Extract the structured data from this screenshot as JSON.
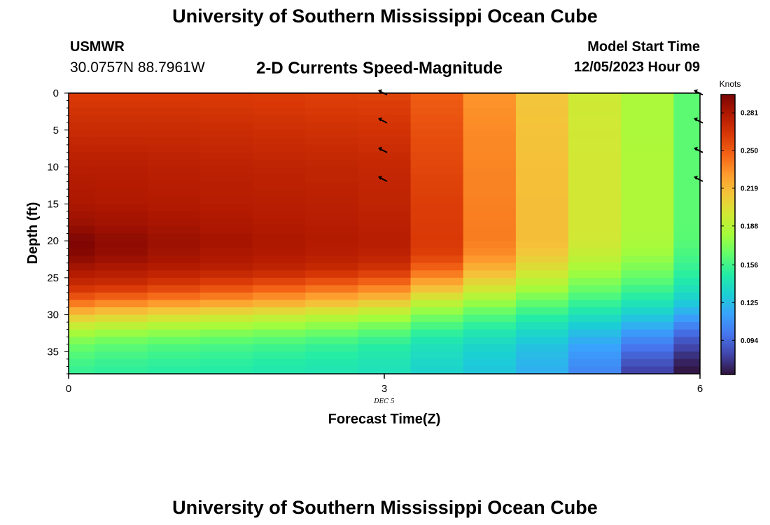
{
  "header": {
    "title": "University of Southern Mississippi Ocean Cube",
    "station": "USMWR",
    "coordinates": "30.0757N  88.7961W",
    "plot_title": "2-D Currents Speed-Magnitude",
    "model_start_label": "Model Start Time",
    "model_start_value": "12/05/2023 Hour 09"
  },
  "footer": {
    "title": "University of Southern Mississippi Ocean Cube"
  },
  "colors": {
    "colormap": [
      "#30123b",
      "#4145ab",
      "#4675ed",
      "#39a2fc",
      "#1bcfd4",
      "#24eca6",
      "#61fc6c",
      "#a4fc3b",
      "#d1e834",
      "#f3c63a",
      "#fe9b2d",
      "#f36315",
      "#d93806",
      "#b11901",
      "#7a0403"
    ]
  },
  "chart_data": {
    "type": "heatmap",
    "xlabel": "Forecast Time(Z)",
    "ylabel": "Depth (ft)",
    "x_date_label": "DEC 5",
    "xlim": [
      0,
      6
    ],
    "ylim": [
      0,
      38
    ],
    "y_inverted": true,
    "x_ticks": [
      0,
      3,
      6
    ],
    "y_ticks": [
      0,
      5,
      10,
      15,
      20,
      25,
      30,
      35
    ],
    "colorbar": {
      "label": "Knots",
      "ticks": [
        0.281,
        0.25,
        0.219,
        0.188,
        0.156,
        0.125,
        0.094
      ],
      "tick_labels": [
        "0.281",
        "0.250",
        "0.219",
        "0.188",
        "0.156",
        "0.125",
        "0.094"
      ],
      "range": [
        0.066,
        0.296
      ]
    },
    "time_columns": [
      0,
      0.5,
      1,
      1.5,
      2,
      2.5,
      3,
      3.5,
      4,
      4.5,
      5,
      5.5,
      6
    ],
    "profile_depths_ft": [
      0,
      5,
      10,
      15,
      18,
      20,
      22,
      24,
      26,
      28,
      30,
      32,
      34,
      36,
      38
    ],
    "speed_profiles_knots": [
      [
        0.262,
        0.27,
        0.277,
        0.281,
        0.287,
        0.295,
        0.292,
        0.281,
        0.27,
        0.248,
        0.215,
        0.187,
        0.168,
        0.158,
        0.152
      ],
      [
        0.262,
        0.27,
        0.277,
        0.28,
        0.285,
        0.29,
        0.288,
        0.279,
        0.268,
        0.243,
        0.21,
        0.183,
        0.164,
        0.155,
        0.15
      ],
      [
        0.262,
        0.27,
        0.276,
        0.279,
        0.283,
        0.286,
        0.284,
        0.277,
        0.263,
        0.238,
        0.205,
        0.18,
        0.161,
        0.153,
        0.148
      ],
      [
        0.262,
        0.269,
        0.275,
        0.278,
        0.281,
        0.283,
        0.281,
        0.275,
        0.258,
        0.234,
        0.201,
        0.177,
        0.159,
        0.151,
        0.147
      ],
      [
        0.261,
        0.268,
        0.274,
        0.277,
        0.279,
        0.281,
        0.279,
        0.273,
        0.253,
        0.229,
        0.197,
        0.174,
        0.157,
        0.149,
        0.145
      ],
      [
        0.26,
        0.267,
        0.273,
        0.276,
        0.278,
        0.279,
        0.277,
        0.27,
        0.248,
        0.223,
        0.192,
        0.17,
        0.154,
        0.147,
        0.143
      ],
      [
        0.259,
        0.266,
        0.272,
        0.274,
        0.276,
        0.277,
        0.275,
        0.265,
        0.242,
        0.216,
        0.186,
        0.165,
        0.15,
        0.144,
        0.141
      ],
      [
        0.249,
        0.254,
        0.258,
        0.261,
        0.262,
        0.263,
        0.26,
        0.245,
        0.222,
        0.195,
        0.172,
        0.154,
        0.142,
        0.137,
        0.134
      ],
      [
        0.232,
        0.235,
        0.237,
        0.238,
        0.239,
        0.239,
        0.234,
        0.22,
        0.203,
        0.182,
        0.162,
        0.147,
        0.136,
        0.131,
        0.128
      ],
      [
        0.214,
        0.215,
        0.216,
        0.217,
        0.217,
        0.217,
        0.212,
        0.2,
        0.186,
        0.168,
        0.152,
        0.138,
        0.128,
        0.123,
        0.12
      ],
      [
        0.196,
        0.197,
        0.198,
        0.198,
        0.198,
        0.197,
        0.192,
        0.182,
        0.17,
        0.156,
        0.142,
        0.128,
        0.117,
        0.11,
        0.105
      ],
      [
        0.184,
        0.184,
        0.185,
        0.185,
        0.185,
        0.184,
        0.179,
        0.17,
        0.159,
        0.146,
        0.132,
        0.116,
        0.102,
        0.09,
        0.08
      ],
      [
        0.163,
        0.163,
        0.163,
        0.163,
        0.163,
        0.162,
        0.158,
        0.152,
        0.144,
        0.133,
        0.118,
        0.1,
        0.085,
        0.073,
        0.066
      ]
    ],
    "direction_arrows": [
      {
        "time": 3,
        "depth": 0
      },
      {
        "time": 3,
        "depth": 3.8
      },
      {
        "time": 3,
        "depth": 7.8
      },
      {
        "time": 3,
        "depth": 11.7
      },
      {
        "time": 6,
        "depth": 0
      },
      {
        "time": 6,
        "depth": 3.8
      },
      {
        "time": 6,
        "depth": 7.8
      },
      {
        "time": 6,
        "depth": 11.7
      }
    ]
  }
}
